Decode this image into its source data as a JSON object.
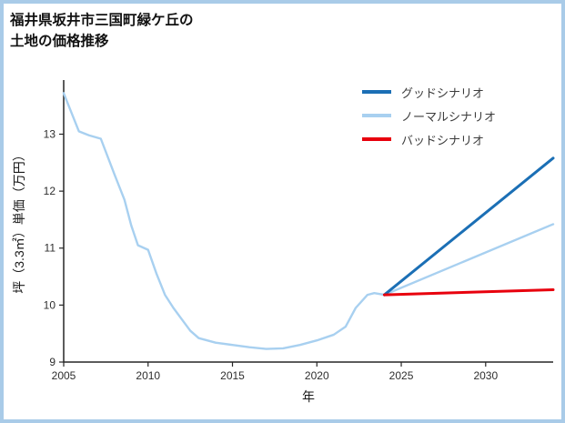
{
  "title_lines": [
    "福井県坂井市三国町緑ケ丘の",
    "土地の価格推移"
  ],
  "frame_border_color": "#a9cbe8",
  "chart_data": {
    "type": "line",
    "title": "福井県坂井市三国町緑ケ丘の土地の価格推移",
    "xlabel": "年",
    "ylabel": "坪（3.3㎡）単価（万円）",
    "xlim": [
      2005,
      2034
    ],
    "ylim": [
      9,
      13.95
    ],
    "xticks": [
      2005,
      2010,
      2015,
      2020,
      2025,
      2030
    ],
    "yticks": [
      9,
      10,
      11,
      12,
      13
    ],
    "axis_color": "#262626",
    "grid": false,
    "legend_position": "upper-right",
    "series": [
      {
        "name": "ノーマルシナリオ",
        "color": "#a8d0f0",
        "width": 2.4,
        "x": [
          2005,
          2005.9,
          2006.5,
          2007.2,
          2008,
          2008.6,
          2009,
          2009.4,
          2010,
          2010.5,
          2011,
          2011.5,
          2012,
          2012.5,
          2013,
          2014,
          2015,
          2016,
          2017,
          2018,
          2019,
          2020,
          2021,
          2021.7,
          2022.3,
          2023,
          2023.4,
          2024,
          2034
        ],
        "values": [
          13.72,
          13.05,
          12.98,
          12.92,
          12.3,
          11.85,
          11.4,
          11.05,
          10.97,
          10.55,
          10.18,
          9.95,
          9.75,
          9.55,
          9.42,
          9.34,
          9.3,
          9.26,
          9.23,
          9.24,
          9.3,
          9.38,
          9.48,
          9.62,
          9.95,
          10.18,
          10.21,
          10.18,
          11.42
        ]
      },
      {
        "name": "グッドシナリオ",
        "color": "#1b6fb5",
        "width": 3,
        "x": [
          2024,
          2034
        ],
        "values": [
          10.18,
          12.58
        ]
      },
      {
        "name": "バッドシナリオ",
        "color": "#e8000d",
        "width": 3,
        "x": [
          2024,
          2034
        ],
        "values": [
          10.18,
          10.27
        ]
      }
    ]
  }
}
